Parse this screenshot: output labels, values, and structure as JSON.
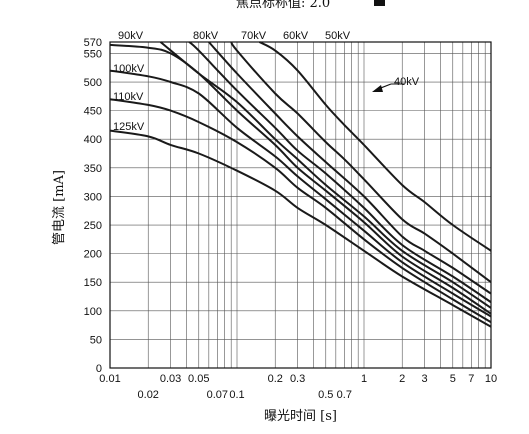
{
  "chart_data": {
    "type": "line",
    "title": "焦点标称值: 2.0",
    "xlabel": "曝光时间 [s]",
    "ylabel": "管电流 [mA]",
    "x_scale": "log",
    "xlim": [
      0.01,
      10
    ],
    "ylim": [
      0,
      570
    ],
    "x_ticks": [
      0.01,
      0.02,
      0.03,
      0.05,
      0.07,
      0.1,
      0.2,
      0.3,
      0.5,
      0.7,
      1,
      2,
      3,
      5,
      7,
      10
    ],
    "x_tick_labels": [
      "0.01",
      "0.02",
      "0.03",
      "0.05",
      "0.07",
      "0.1",
      "0.2",
      "0.3",
      "0.5",
      "0.7",
      "1",
      "2",
      "3",
      "5",
      "7",
      "10"
    ],
    "y_ticks": [
      0,
      50,
      100,
      150,
      200,
      250,
      300,
      350,
      400,
      450,
      500,
      550,
      570
    ],
    "y_tick_labels": [
      "0",
      "50",
      "100",
      "150",
      "200",
      "250",
      "300",
      "350",
      "400",
      "450",
      "500",
      "550",
      "570"
    ],
    "grid": true,
    "series": [
      {
        "name": "40kV",
        "points": [
          [
            0.15,
            570
          ],
          [
            0.2,
            555
          ],
          [
            0.3,
            520
          ],
          [
            0.5,
            460
          ],
          [
            0.7,
            425
          ],
          [
            1,
            390
          ],
          [
            2,
            320
          ],
          [
            3,
            290
          ],
          [
            5,
            250
          ],
          [
            10,
            205
          ]
        ]
      },
      {
        "name": "50kV",
        "points": [
          [
            0.09,
            570
          ],
          [
            0.1,
            555
          ],
          [
            0.2,
            480
          ],
          [
            0.3,
            445
          ],
          [
            0.5,
            395
          ],
          [
            0.7,
            365
          ],
          [
            1,
            330
          ],
          [
            2,
            260
          ],
          [
            3,
            235
          ],
          [
            5,
            200
          ],
          [
            10,
            150
          ]
        ]
      },
      {
        "name": "60kV",
        "points": [
          [
            0.06,
            570
          ],
          [
            0.1,
            515
          ],
          [
            0.2,
            445
          ],
          [
            0.3,
            405
          ],
          [
            0.5,
            360
          ],
          [
            1,
            300
          ],
          [
            2,
            230
          ],
          [
            3,
            205
          ],
          [
            5,
            175
          ],
          [
            10,
            130
          ]
        ]
      },
      {
        "name": "70kV",
        "points": [
          [
            0.042,
            570
          ],
          [
            0.05,
            555
          ],
          [
            0.1,
            485
          ],
          [
            0.2,
            420
          ],
          [
            0.3,
            380
          ],
          [
            0.5,
            340
          ],
          [
            1,
            280
          ],
          [
            2,
            215
          ],
          [
            5,
            160
          ],
          [
            10,
            115
          ]
        ]
      },
      {
        "name": "80kV",
        "points": [
          [
            0.025,
            570
          ],
          [
            0.05,
            515
          ],
          [
            0.1,
            465
          ],
          [
            0.2,
            400
          ],
          [
            0.3,
            365
          ],
          [
            0.5,
            320
          ],
          [
            1,
            265
          ],
          [
            2,
            205
          ],
          [
            5,
            150
          ],
          [
            10,
            105
          ]
        ]
      },
      {
        "name": "90kV",
        "points": [
          [
            0.01,
            565
          ],
          [
            0.02,
            560
          ],
          [
            0.03,
            550
          ],
          [
            0.05,
            515
          ],
          [
            0.1,
            450
          ],
          [
            0.2,
            390
          ],
          [
            0.3,
            350
          ],
          [
            0.5,
            310
          ],
          [
            1,
            255
          ],
          [
            2,
            195
          ],
          [
            5,
            140
          ],
          [
            10,
            95
          ]
        ]
      },
      {
        "name": "100kV",
        "points": [
          [
            0.01,
            520
          ],
          [
            0.02,
            510
          ],
          [
            0.03,
            500
          ],
          [
            0.05,
            480
          ],
          [
            0.1,
            420
          ],
          [
            0.2,
            370
          ],
          [
            0.3,
            335
          ],
          [
            0.5,
            295
          ],
          [
            1,
            240
          ],
          [
            2,
            185
          ],
          [
            5,
            130
          ],
          [
            10,
            90
          ]
        ]
      },
      {
        "name": "110kV",
        "points": [
          [
            0.01,
            470
          ],
          [
            0.02,
            460
          ],
          [
            0.03,
            450
          ],
          [
            0.05,
            430
          ],
          [
            0.1,
            395
          ],
          [
            0.2,
            350
          ],
          [
            0.3,
            315
          ],
          [
            0.5,
            280
          ],
          [
            1,
            225
          ],
          [
            2,
            175
          ],
          [
            5,
            120
          ],
          [
            10,
            80
          ]
        ]
      },
      {
        "name": "125kV",
        "points": [
          [
            0.01,
            415
          ],
          [
            0.02,
            405
          ],
          [
            0.03,
            390
          ],
          [
            0.05,
            375
          ],
          [
            0.1,
            345
          ],
          [
            0.2,
            310
          ],
          [
            0.3,
            280
          ],
          [
            0.5,
            250
          ],
          [
            1,
            205
          ],
          [
            2,
            160
          ],
          [
            5,
            110
          ],
          [
            10,
            72
          ]
        ]
      }
    ]
  }
}
